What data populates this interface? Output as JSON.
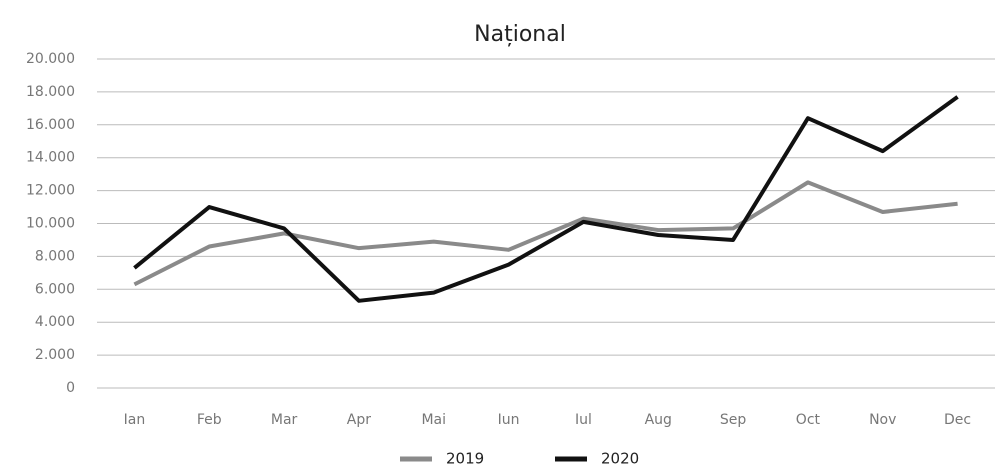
{
  "chart_data": {
    "type": "line",
    "title": "Național",
    "categories": [
      "Ian",
      "Feb",
      "Mar",
      "Apr",
      "Mai",
      "Iun",
      "Iul",
      "Aug",
      "Sep",
      "Oct",
      "Nov",
      "Dec"
    ],
    "series": [
      {
        "name": "2019",
        "color": "#8a8a8a",
        "values": [
          6300,
          8600,
          9400,
          8500,
          8900,
          8400,
          10300,
          9600,
          9700,
          12500,
          10700,
          11200
        ]
      },
      {
        "name": "2020",
        "color": "#111111",
        "values": [
          7300,
          11000,
          9700,
          5300,
          5800,
          7500,
          10100,
          9300,
          9000,
          16400,
          14400,
          17700
        ]
      }
    ],
    "ylim": [
      0,
      20000
    ],
    "yticks": [
      0,
      {
        "value": 2000,
        "label": "2.000"
      },
      {
        "value": 4000,
        "label": "4.000"
      },
      {
        "value": 6000,
        "label": "6.000"
      },
      {
        "value": 8000,
        "label": "8.000"
      },
      {
        "value": 10000,
        "label": "10.000"
      },
      {
        "value": 12000,
        "label": "12.000"
      },
      {
        "value": 14000,
        "label": "14.000"
      },
      {
        "value": 16000,
        "label": "16.000"
      },
      {
        "value": 18000,
        "label": "18.000"
      },
      {
        "value": 20000,
        "label": "20.000"
      }
    ],
    "grid": true
  }
}
